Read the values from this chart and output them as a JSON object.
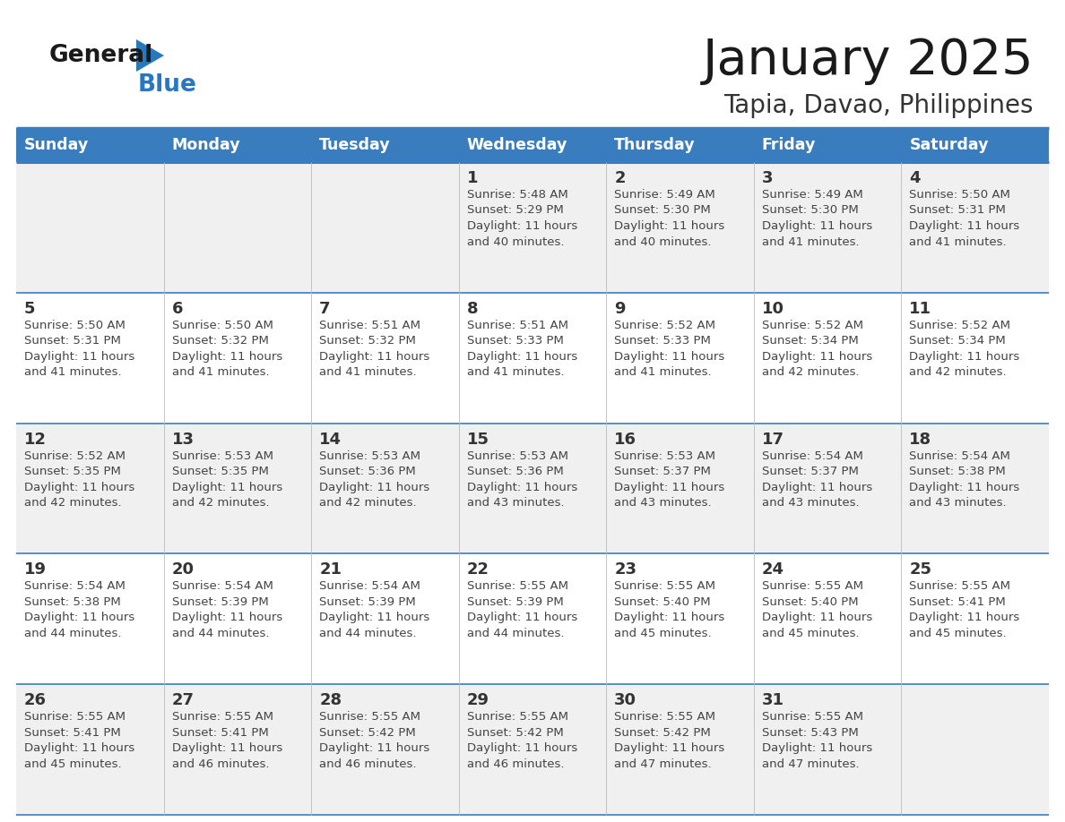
{
  "title": "January 2025",
  "subtitle": "Tapia, Davao, Philippines",
  "days_of_week": [
    "Sunday",
    "Monday",
    "Tuesday",
    "Wednesday",
    "Thursday",
    "Friday",
    "Saturday"
  ],
  "header_bg": "#3a7dbf",
  "header_text": "#ffffff",
  "row_bg_even": "#f0f0f0",
  "row_bg_odd": "#ffffff",
  "separator_color": "#3a7dbf",
  "day_number_color": "#333333",
  "cell_text_color": "#444444",
  "title_color": "#1a1a1a",
  "subtitle_color": "#333333",
  "logo_general_color": "#1a1a1a",
  "logo_blue_color": "#2878be",
  "calendar_data": [
    {
      "day": 1,
      "col": 3,
      "row": 0,
      "sunrise": "5:48 AM",
      "sunset": "5:29 PM",
      "daylight": "11 hours and 40 minutes."
    },
    {
      "day": 2,
      "col": 4,
      "row": 0,
      "sunrise": "5:49 AM",
      "sunset": "5:30 PM",
      "daylight": "11 hours and 40 minutes."
    },
    {
      "day": 3,
      "col": 5,
      "row": 0,
      "sunrise": "5:49 AM",
      "sunset": "5:30 PM",
      "daylight": "11 hours and 41 minutes."
    },
    {
      "day": 4,
      "col": 6,
      "row": 0,
      "sunrise": "5:50 AM",
      "sunset": "5:31 PM",
      "daylight": "11 hours and 41 minutes."
    },
    {
      "day": 5,
      "col": 0,
      "row": 1,
      "sunrise": "5:50 AM",
      "sunset": "5:31 PM",
      "daylight": "11 hours and 41 minutes."
    },
    {
      "day": 6,
      "col": 1,
      "row": 1,
      "sunrise": "5:50 AM",
      "sunset": "5:32 PM",
      "daylight": "11 hours and 41 minutes."
    },
    {
      "day": 7,
      "col": 2,
      "row": 1,
      "sunrise": "5:51 AM",
      "sunset": "5:32 PM",
      "daylight": "11 hours and 41 minutes."
    },
    {
      "day": 8,
      "col": 3,
      "row": 1,
      "sunrise": "5:51 AM",
      "sunset": "5:33 PM",
      "daylight": "11 hours and 41 minutes."
    },
    {
      "day": 9,
      "col": 4,
      "row": 1,
      "sunrise": "5:52 AM",
      "sunset": "5:33 PM",
      "daylight": "11 hours and 41 minutes."
    },
    {
      "day": 10,
      "col": 5,
      "row": 1,
      "sunrise": "5:52 AM",
      "sunset": "5:34 PM",
      "daylight": "11 hours and 42 minutes."
    },
    {
      "day": 11,
      "col": 6,
      "row": 1,
      "sunrise": "5:52 AM",
      "sunset": "5:34 PM",
      "daylight": "11 hours and 42 minutes."
    },
    {
      "day": 12,
      "col": 0,
      "row": 2,
      "sunrise": "5:52 AM",
      "sunset": "5:35 PM",
      "daylight": "11 hours and 42 minutes."
    },
    {
      "day": 13,
      "col": 1,
      "row": 2,
      "sunrise": "5:53 AM",
      "sunset": "5:35 PM",
      "daylight": "11 hours and 42 minutes."
    },
    {
      "day": 14,
      "col": 2,
      "row": 2,
      "sunrise": "5:53 AM",
      "sunset": "5:36 PM",
      "daylight": "11 hours and 42 minutes."
    },
    {
      "day": 15,
      "col": 3,
      "row": 2,
      "sunrise": "5:53 AM",
      "sunset": "5:36 PM",
      "daylight": "11 hours and 43 minutes."
    },
    {
      "day": 16,
      "col": 4,
      "row": 2,
      "sunrise": "5:53 AM",
      "sunset": "5:37 PM",
      "daylight": "11 hours and 43 minutes."
    },
    {
      "day": 17,
      "col": 5,
      "row": 2,
      "sunrise": "5:54 AM",
      "sunset": "5:37 PM",
      "daylight": "11 hours and 43 minutes."
    },
    {
      "day": 18,
      "col": 6,
      "row": 2,
      "sunrise": "5:54 AM",
      "sunset": "5:38 PM",
      "daylight": "11 hours and 43 minutes."
    },
    {
      "day": 19,
      "col": 0,
      "row": 3,
      "sunrise": "5:54 AM",
      "sunset": "5:38 PM",
      "daylight": "11 hours and 44 minutes."
    },
    {
      "day": 20,
      "col": 1,
      "row": 3,
      "sunrise": "5:54 AM",
      "sunset": "5:39 PM",
      "daylight": "11 hours and 44 minutes."
    },
    {
      "day": 21,
      "col": 2,
      "row": 3,
      "sunrise": "5:54 AM",
      "sunset": "5:39 PM",
      "daylight": "11 hours and 44 minutes."
    },
    {
      "day": 22,
      "col": 3,
      "row": 3,
      "sunrise": "5:55 AM",
      "sunset": "5:39 PM",
      "daylight": "11 hours and 44 minutes."
    },
    {
      "day": 23,
      "col": 4,
      "row": 3,
      "sunrise": "5:55 AM",
      "sunset": "5:40 PM",
      "daylight": "11 hours and 45 minutes."
    },
    {
      "day": 24,
      "col": 5,
      "row": 3,
      "sunrise": "5:55 AM",
      "sunset": "5:40 PM",
      "daylight": "11 hours and 45 minutes."
    },
    {
      "day": 25,
      "col": 6,
      "row": 3,
      "sunrise": "5:55 AM",
      "sunset": "5:41 PM",
      "daylight": "11 hours and 45 minutes."
    },
    {
      "day": 26,
      "col": 0,
      "row": 4,
      "sunrise": "5:55 AM",
      "sunset": "5:41 PM",
      "daylight": "11 hours and 45 minutes."
    },
    {
      "day": 27,
      "col": 1,
      "row": 4,
      "sunrise": "5:55 AM",
      "sunset": "5:41 PM",
      "daylight": "11 hours and 46 minutes."
    },
    {
      "day": 28,
      "col": 2,
      "row": 4,
      "sunrise": "5:55 AM",
      "sunset": "5:42 PM",
      "daylight": "11 hours and 46 minutes."
    },
    {
      "day": 29,
      "col": 3,
      "row": 4,
      "sunrise": "5:55 AM",
      "sunset": "5:42 PM",
      "daylight": "11 hours and 46 minutes."
    },
    {
      "day": 30,
      "col": 4,
      "row": 4,
      "sunrise": "5:55 AM",
      "sunset": "5:42 PM",
      "daylight": "11 hours and 47 minutes."
    },
    {
      "day": 31,
      "col": 5,
      "row": 4,
      "sunrise": "5:55 AM",
      "sunset": "5:43 PM",
      "daylight": "11 hours and 47 minutes."
    }
  ]
}
